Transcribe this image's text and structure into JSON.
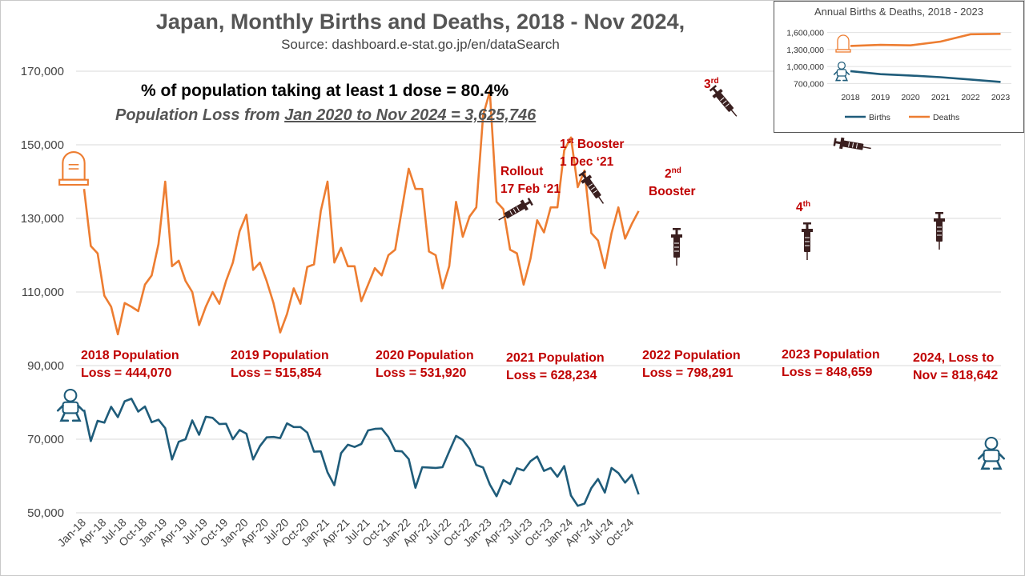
{
  "title": "Japan, Monthly Births and Deaths, 2018 - Nov 2024,",
  "source": "Source: dashboard.e-stat.go.jp/en/dataSearch",
  "dose_text": "% of population taking at least 1 dose = 80.4%",
  "loss_prefix": "Population Loss from ",
  "loss_underlined": "Jan 2020 to Nov 2024 = 3,625,746",
  "population_losses": [
    {
      "line1": "2018 Population",
      "line2": "Loss = 444,070"
    },
    {
      "line1": "2019 Population",
      "line2": "Loss = 515,854"
    },
    {
      "line1": "2020 Population",
      "line2": "Loss = 531,920"
    },
    {
      "line1": "2021 Population",
      "line2": "Loss = 628,234"
    },
    {
      "line1": "2022 Population",
      "line2": "Loss = 798,291"
    },
    {
      "line1": "2023 Population",
      "line2": "Loss = 848,659"
    },
    {
      "line1": "2024, Loss to",
      "line2": "Nov = 818,642"
    }
  ],
  "annotations": {
    "rollout_1": "Rollout",
    "rollout_2": "17 Feb ‘21",
    "booster1_num": "1",
    "booster1_sup": "st",
    "booster1_word": " Booster",
    "booster1_date": "1 Dec ‘21",
    "booster2_num": "2",
    "booster2_sup": "nd",
    "booster2_word": "Booster",
    "dose3_num": "3",
    "dose3_sup": "rd",
    "dose4_num": "4",
    "dose4_sup": "th"
  },
  "icons": [
    "tombstone-icon",
    "baby-icon",
    "syringe-icon"
  ],
  "colors": {
    "deaths": "#ED7D31",
    "births": "#1F5C7A",
    "annotation": "#C00000",
    "icon": "#3A1F1F"
  },
  "chart_data": [
    {
      "type": "line",
      "title": "Japan, Monthly Births and Deaths, 2018 - Nov 2024,",
      "xlabel": "",
      "ylabel": "",
      "ylim": [
        50000,
        170000
      ],
      "yticks": [
        "50,000",
        "70,000",
        "90,000",
        "110,000",
        "130,000",
        "150,000",
        "170,000"
      ],
      "ytick_values": [
        50000,
        70000,
        90000,
        110000,
        130000,
        150000,
        170000
      ],
      "xticks": [
        "Jan-18",
        "Apr-18",
        "Jul-18",
        "Oct-18",
        "Jan-19",
        "Apr-19",
        "Jul-19",
        "Oct-19",
        "Jan-20",
        "Apr-20",
        "Jul-20",
        "Oct-20",
        "Jan-21",
        "Apr-21",
        "Jul-21",
        "Oct-21",
        "Jan-22",
        "Apr-22",
        "Jul-22",
        "Oct-22",
        "Jan-23",
        "Apr-23",
        "Jul-23",
        "Oct-23",
        "Jan-24",
        "Apr-24",
        "Jul-24",
        "Oct-24"
      ],
      "x_start": "Jan-18",
      "x_end": "Nov-24",
      "grid": true,
      "series": [
        {
          "name": "Deaths",
          "color": "#ED7D31",
          "values": [
            138000,
            122500,
            120500,
            109000,
            106000,
            98500,
            107000,
            106000,
            104800,
            112000,
            114500,
            123000,
            140000,
            117000,
            118500,
            113000,
            110000,
            101000,
            106000,
            110000,
            106800,
            113000,
            118000,
            126500,
            131000,
            116000,
            118000,
            113000,
            107000,
            99000,
            104000,
            111000,
            106800,
            116800,
            117500,
            132000,
            140000,
            118000,
            122000,
            117000,
            117000,
            107500,
            112000,
            116500,
            114500,
            120000,
            121500,
            132500,
            143500,
            138000,
            138000,
            121000,
            120000,
            111000,
            117000,
            134500,
            125000,
            130500,
            133000,
            158000,
            164500,
            134500,
            132500,
            121500,
            120500,
            112000,
            119000,
            129500,
            126200,
            133000,
            133000,
            148500,
            152000,
            138500,
            143000,
            126000,
            124000,
            116500,
            126000,
            133000,
            124500,
            128500,
            132000
          ]
        },
        {
          "name": "Births",
          "color": "#1F5C7A",
          "values": [
            78000,
            69500,
            75000,
            74500,
            78800,
            76000,
            80300,
            81000,
            77500,
            78900,
            74600,
            75300,
            73000,
            64500,
            69300,
            70000,
            75100,
            71200,
            76100,
            75800,
            74100,
            74200,
            70000,
            72500,
            71500,
            64500,
            68100,
            70500,
            70600,
            70300,
            74300,
            73300,
            73300,
            71800,
            66600,
            66700,
            61000,
            57500,
            66200,
            68500,
            67900,
            68700,
            72400,
            72800,
            72900,
            70600,
            66800,
            66700,
            64600,
            56800,
            62400,
            62300,
            62200,
            62400,
            66700,
            70900,
            69800,
            67400,
            63000,
            62300,
            57700,
            54500,
            58900,
            57800,
            62100,
            61500,
            64000,
            65300,
            61400,
            62200,
            59800,
            62700,
            54700,
            51900,
            52500,
            56700,
            59200,
            55500,
            62200,
            60800,
            58200,
            60300,
            55000
          ]
        }
      ]
    },
    {
      "type": "line",
      "title": "Annual Births & Deaths, 2018 - 2023",
      "categories": [
        "2018",
        "2019",
        "2020",
        "2021",
        "2022",
        "2023"
      ],
      "ylim": [
        550000,
        1750000
      ],
      "yticks": [
        "700,000",
        "1,000,000",
        "1,300,000",
        "1,600,000"
      ],
      "ytick_values": [
        700000,
        1000000,
        1300000,
        1600000
      ],
      "grid": true,
      "legend": "bottom",
      "series": [
        {
          "name": "Births",
          "color": "#1F5C7A",
          "values": [
            918400,
            865200,
            840800,
            811600,
            770700,
            727300
          ]
        },
        {
          "name": "Deaths",
          "color": "#ED7D31",
          "values": [
            1362500,
            1381100,
            1372700,
            1439900,
            1569000,
            1576000
          ]
        }
      ]
    }
  ]
}
